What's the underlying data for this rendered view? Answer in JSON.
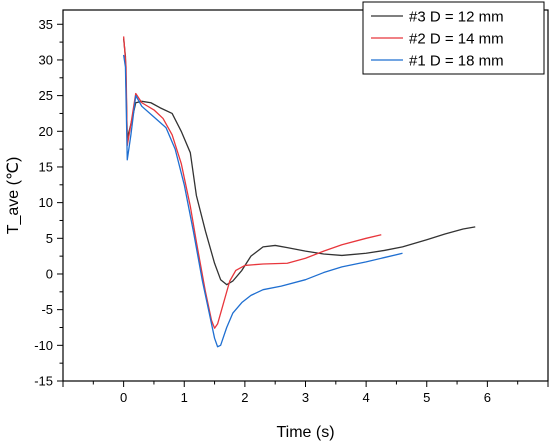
{
  "chart_data": {
    "type": "line",
    "title": "",
    "xlabel": "Time (s)",
    "ylabel": "T_ave (℃)",
    "xlim": [
      -1,
      7
    ],
    "ylim": [
      -15,
      37
    ],
    "xticks": [
      "0",
      "1",
      "2",
      "3",
      "4",
      "5",
      "6"
    ],
    "xtick_values": [
      0,
      1,
      2,
      3,
      4,
      5,
      6
    ],
    "yticks": [
      "-15",
      "-10",
      "-5",
      "0",
      "5",
      "10",
      "15",
      "20",
      "25",
      "30",
      "35"
    ],
    "ytick_values": [
      -15,
      -10,
      -5,
      0,
      5,
      10,
      15,
      20,
      25,
      30,
      35
    ],
    "grid": false,
    "legend_position": "top-right",
    "series": [
      {
        "name": "#3 D = 12 mm",
        "color": "#333333",
        "points": [
          [
            0.0,
            33.0
          ],
          [
            0.03,
            30.5
          ],
          [
            0.06,
            19.0
          ],
          [
            0.12,
            21.0
          ],
          [
            0.2,
            24.0
          ],
          [
            0.3,
            24.2
          ],
          [
            0.45,
            24.0
          ],
          [
            0.6,
            23.3
          ],
          [
            0.8,
            22.5
          ],
          [
            0.95,
            20.0
          ],
          [
            1.1,
            17.0
          ],
          [
            1.2,
            11.0
          ],
          [
            1.35,
            6.0
          ],
          [
            1.5,
            1.5
          ],
          [
            1.6,
            -0.8
          ],
          [
            1.7,
            -1.5
          ],
          [
            1.8,
            -1.0
          ],
          [
            1.95,
            0.5
          ],
          [
            2.1,
            2.5
          ],
          [
            2.3,
            3.8
          ],
          [
            2.5,
            4.0
          ],
          [
            2.7,
            3.7
          ],
          [
            3.0,
            3.2
          ],
          [
            3.3,
            2.8
          ],
          [
            3.6,
            2.6
          ],
          [
            4.0,
            2.9
          ],
          [
            4.3,
            3.3
          ],
          [
            4.6,
            3.8
          ],
          [
            5.0,
            4.8
          ],
          [
            5.3,
            5.6
          ],
          [
            5.6,
            6.3
          ],
          [
            5.8,
            6.6
          ]
        ]
      },
      {
        "name": "#2 D = 14 mm",
        "color": "#e8363c",
        "points": [
          [
            0.0,
            33.3
          ],
          [
            0.04,
            29.0
          ],
          [
            0.06,
            18.0
          ],
          [
            0.12,
            21.0
          ],
          [
            0.2,
            25.3
          ],
          [
            0.3,
            24.0
          ],
          [
            0.5,
            23.0
          ],
          [
            0.65,
            21.8
          ],
          [
            0.8,
            19.5
          ],
          [
            0.95,
            15.5
          ],
          [
            1.1,
            9.5
          ],
          [
            1.2,
            4.5
          ],
          [
            1.35,
            -2.5
          ],
          [
            1.45,
            -6.5
          ],
          [
            1.5,
            -7.6
          ],
          [
            1.55,
            -7.0
          ],
          [
            1.65,
            -4.0
          ],
          [
            1.75,
            -1.0
          ],
          [
            1.85,
            0.5
          ],
          [
            2.0,
            1.2
          ],
          [
            2.3,
            1.4
          ],
          [
            2.7,
            1.5
          ],
          [
            3.0,
            2.2
          ],
          [
            3.3,
            3.2
          ],
          [
            3.6,
            4.1
          ],
          [
            4.0,
            5.0
          ],
          [
            4.25,
            5.5
          ]
        ]
      },
      {
        "name": "#1 D = 18 mm",
        "color": "#1f6fd1",
        "points": [
          [
            0.0,
            30.7
          ],
          [
            0.03,
            29.0
          ],
          [
            0.06,
            16.0
          ],
          [
            0.12,
            19.5
          ],
          [
            0.2,
            25.0
          ],
          [
            0.3,
            23.5
          ],
          [
            0.5,
            22.0
          ],
          [
            0.7,
            20.5
          ],
          [
            0.85,
            17.5
          ],
          [
            1.0,
            12.5
          ],
          [
            1.15,
            6.0
          ],
          [
            1.3,
            -1.0
          ],
          [
            1.4,
            -5.0
          ],
          [
            1.5,
            -9.0
          ],
          [
            1.55,
            -10.2
          ],
          [
            1.6,
            -10.0
          ],
          [
            1.7,
            -7.5
          ],
          [
            1.8,
            -5.5
          ],
          [
            1.95,
            -4.0
          ],
          [
            2.1,
            -3.0
          ],
          [
            2.3,
            -2.2
          ],
          [
            2.6,
            -1.7
          ],
          [
            3.0,
            -0.8
          ],
          [
            3.3,
            0.2
          ],
          [
            3.6,
            1.0
          ],
          [
            4.0,
            1.7
          ],
          [
            4.3,
            2.3
          ],
          [
            4.6,
            2.9
          ]
        ]
      }
    ]
  }
}
